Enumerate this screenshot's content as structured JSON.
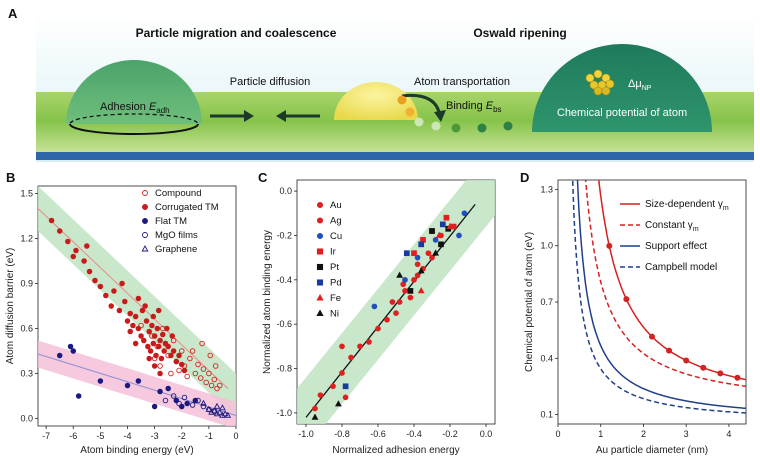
{
  "figure": {
    "panel_labels": {
      "a": "A",
      "b": "B",
      "c": "C",
      "d": "D"
    },
    "panel_a": {
      "heading_left": "Particle migration and coalescence",
      "heading_right": "Oswald ripening",
      "particle_diffusion": "Particle diffusion",
      "atom_transportation": "Atom transportation",
      "adhesion_label": "Adhesion ",
      "adhesion_symbol": "E",
      "adhesion_sub": "adh",
      "binding_label": "Binding ",
      "binding_symbol": "E",
      "binding_sub": "bs",
      "mu_symbol": "Δμ",
      "mu_sub": "NP",
      "chemical_potential": "Chemical potential of atom",
      "colors": {
        "sky": "#d8f0f4",
        "support": "#86c34a",
        "dome_green": "#4aa36a",
        "dome_teal": "#238564",
        "yellow_particle": "#f2e45a",
        "base": "#2f66a8"
      }
    }
  },
  "chart_data": [
    {
      "panel": "B",
      "type": "scatter",
      "xlabel": "Atom binding energy (eV)",
      "ylabel": "Atom diffusion barrier (eV)",
      "xlim": [
        -7.3,
        0
      ],
      "ylim": [
        -0.05,
        1.55
      ],
      "xticks": [
        "-7",
        "-6",
        "-5",
        "-4",
        "-3",
        "-2",
        "-1",
        "0"
      ],
      "yticks": [
        "0.0",
        "0.3",
        "0.6",
        "0.9",
        "1.2",
        "1.5"
      ],
      "xtick_values": [
        -7,
        -6,
        -5,
        -4,
        -3,
        -2,
        -1,
        0
      ],
      "ytick_values": [
        0,
        0.3,
        0.6,
        0.9,
        1.2,
        1.5
      ],
      "bands": [
        {
          "color": "#bfe4c2",
          "from": [
            -7.3,
            1.4
          ],
          "to": [
            0,
            0.15
          ],
          "halfwidth": 0.15
        },
        {
          "color": "#f5c0d8",
          "from": [
            -7.3,
            0.43
          ],
          "to": [
            0,
            0.02
          ],
          "halfwidth": 0.09
        }
      ],
      "fit_lines": [
        {
          "color": "#e88a8a",
          "from": [
            -7.3,
            1.4
          ],
          "to": [
            -0.3,
            0.2
          ]
        },
        {
          "color": "#8c8cd0",
          "from": [
            -7.3,
            0.43
          ],
          "to": [
            0,
            0.02
          ]
        }
      ],
      "legend_position": "top-right",
      "series": [
        {
          "name": "Compound",
          "marker": "open-circle",
          "color": "#d22222",
          "x": [
            -3.5,
            -3.1,
            -2.9,
            -2.7,
            -2.5,
            -2.3,
            -2.2,
            -2.0,
            -1.9,
            -1.7,
            -1.5,
            -1.4,
            -1.3,
            -1.2,
            -1.1,
            -1.0,
            -0.9,
            -0.8,
            -0.7,
            -0.6,
            -2.8,
            -2.6,
            -2.1,
            -1.8,
            -1.6,
            -2.4,
            -3.0,
            -1.25,
            -0.95,
            -0.75
          ],
          "y": [
            0.62,
            0.55,
            0.48,
            0.6,
            0.42,
            0.52,
            0.38,
            0.45,
            0.35,
            0.4,
            0.3,
            0.36,
            0.27,
            0.33,
            0.24,
            0.3,
            0.22,
            0.26,
            0.2,
            0.22,
            0.35,
            0.5,
            0.32,
            0.28,
            0.45,
            0.3,
            0.4,
            0.5,
            0.42,
            0.35
          ]
        },
        {
          "name": "Corrugated TM",
          "marker": "filled-circle",
          "color": "#c81a1a",
          "x": [
            -6.8,
            -6.5,
            -6.2,
            -5.9,
            -5.6,
            -5.4,
            -5.2,
            -5.0,
            -4.8,
            -4.6,
            -4.5,
            -4.3,
            -4.1,
            -4.0,
            -3.9,
            -3.8,
            -3.7,
            -3.6,
            -3.5,
            -3.45,
            -3.4,
            -3.3,
            -3.25,
            -3.2,
            -3.15,
            -3.1,
            -3.05,
            -3.0,
            -2.95,
            -2.9,
            -2.85,
            -2.8,
            -2.75,
            -2.7,
            -2.65,
            -2.6,
            -2.5,
            -2.4,
            -2.3,
            -2.2,
            -2.1,
            -2.0,
            -1.9,
            -3.6,
            -3.35,
            -3.05,
            -2.85,
            -2.55,
            -2.35,
            -4.2,
            -3.9,
            -3.7,
            -5.5,
            -6.0,
            -3.0,
            -2.8,
            -3.2
          ],
          "y": [
            1.32,
            1.25,
            1.18,
            1.12,
            1.05,
            0.98,
            0.92,
            0.88,
            0.82,
            0.75,
            0.85,
            0.72,
            0.78,
            0.65,
            0.7,
            0.62,
            0.68,
            0.6,
            0.55,
            0.72,
            0.52,
            0.65,
            0.48,
            0.58,
            0.45,
            0.62,
            0.5,
            0.55,
            0.42,
            0.6,
            0.48,
            0.52,
            0.4,
            0.56,
            0.45,
            0.5,
            0.48,
            0.42,
            0.45,
            0.38,
            0.42,
            0.36,
            0.32,
            0.8,
            0.75,
            0.68,
            0.72,
            0.6,
            0.55,
            0.9,
            0.58,
            0.5,
            1.15,
            1.08,
            0.35,
            0.3,
            0.4
          ]
        },
        {
          "name": "Flat TM",
          "marker": "filled-circle",
          "color": "#1a1a80",
          "x": [
            -6.5,
            -6.1,
            -6.0,
            -5.8,
            -5.0,
            -4.0,
            -3.6,
            -3.0,
            -2.8,
            -2.5,
            -2.2,
            -2.0,
            -1.8,
            -1.5
          ],
          "y": [
            0.42,
            0.48,
            0.45,
            0.15,
            0.25,
            0.22,
            0.25,
            0.08,
            0.18,
            0.2,
            0.12,
            0.08,
            0.1,
            0.12
          ]
        },
        {
          "name": "MgO films",
          "marker": "open-circle",
          "color": "#1a1a80",
          "x": [
            -2.6,
            -2.3,
            -2.1,
            -1.9,
            -1.6,
            -1.4,
            -1.2,
            -1.0,
            -0.8
          ],
          "y": [
            0.12,
            0.15,
            0.1,
            0.14,
            0.09,
            0.12,
            0.08,
            0.06,
            0.05
          ]
        },
        {
          "name": "Graphene",
          "marker": "open-triangle",
          "color": "#1a1a80",
          "x": [
            -1.2,
            -1.0,
            -0.9,
            -0.8,
            -0.7,
            -0.6,
            -0.5,
            -0.4,
            -0.3,
            -0.5,
            -0.7
          ],
          "y": [
            0.1,
            0.06,
            0.04,
            0.05,
            0.03,
            0.04,
            0.02,
            0.03,
            0.02,
            0.07,
            0.08
          ]
        }
      ],
      "legend": [
        "Compound",
        "Corrugated TM",
        "Flat TM",
        "MgO films",
        "Graphene"
      ]
    },
    {
      "panel": "C",
      "type": "scatter",
      "xlabel": "Normalized adhesion energy",
      "ylabel": "Normalized atom binding energy",
      "xlim": [
        -1.05,
        0.05
      ],
      "ylim": [
        -1.05,
        0.05
      ],
      "xticks": [
        "-1.0",
        "-0.8",
        "-0.6",
        "-0.4",
        "-0.2",
        "0.0"
      ],
      "yticks": [
        "0.0",
        "-0.2",
        "-0.4",
        "-0.6",
        "-0.8",
        "-1.0"
      ],
      "xtick_values": [
        -1.0,
        -0.8,
        -0.6,
        -0.4,
        -0.2,
        0.0
      ],
      "ytick_values": [
        0.0,
        -0.2,
        -0.4,
        -0.6,
        -0.8,
        -1.0
      ],
      "band": {
        "color": "#bfe4c2",
        "halfwidth": 0.16
      },
      "fit_line": {
        "color": "#111111",
        "from": [
          -1.0,
          -1.02
        ],
        "to": [
          -0.06,
          -0.06
        ]
      },
      "legend_position": "top-left",
      "series": [
        {
          "name": "Au",
          "marker": "filled-circle",
          "color": "#e02020",
          "x": [
            -0.95,
            -0.92,
            -0.85,
            -0.8,
            -0.75,
            -0.7,
            -0.65,
            -0.6,
            -0.55,
            -0.5,
            -0.48,
            -0.45,
            -0.42,
            -0.4,
            -0.38,
            -0.35,
            -0.3,
            -0.25,
            -0.8,
            -0.78
          ],
          "y": [
            -0.98,
            -0.92,
            -0.88,
            -0.82,
            -0.75,
            -0.7,
            -0.68,
            -0.62,
            -0.58,
            -0.55,
            -0.5,
            -0.45,
            -0.48,
            -0.4,
            -0.38,
            -0.35,
            -0.3,
            -0.2,
            -0.7,
            -0.93
          ]
        },
        {
          "name": "Ag",
          "marker": "filled-circle",
          "color": "#e02020",
          "x": [
            -0.52,
            -0.46,
            -0.38,
            -0.32
          ],
          "y": [
            -0.5,
            -0.42,
            -0.33,
            -0.28
          ]
        },
        {
          "name": "Cu",
          "marker": "filled-circle",
          "color": "#2050c0",
          "x": [
            -0.62,
            -0.45,
            -0.38,
            -0.28,
            -0.15,
            -0.12
          ],
          "y": [
            -0.52,
            -0.4,
            -0.3,
            -0.22,
            -0.2,
            -0.1
          ]
        },
        {
          "name": "Ir",
          "marker": "filled-square",
          "color": "#e02020",
          "x": [
            -0.4,
            -0.35,
            -0.3,
            -0.22,
            -0.18
          ],
          "y": [
            -0.28,
            -0.22,
            -0.18,
            -0.12,
            -0.16
          ]
        },
        {
          "name": "Pt",
          "marker": "filled-square",
          "color": "#111111",
          "x": [
            -0.42,
            -0.3,
            -0.25,
            -0.21
          ],
          "y": [
            -0.45,
            -0.18,
            -0.24,
            -0.17
          ]
        },
        {
          "name": "Pd",
          "marker": "filled-square",
          "color": "#1a3aa0",
          "x": [
            -0.44,
            -0.36,
            -0.24,
            -0.78
          ],
          "y": [
            -0.28,
            -0.24,
            -0.15,
            -0.88
          ]
        },
        {
          "name": "Fe",
          "marker": "filled-triangle",
          "color": "#e02020",
          "x": [
            -0.36,
            -0.26,
            -0.2
          ],
          "y": [
            -0.45,
            -0.2,
            -0.16
          ]
        },
        {
          "name": "Ni",
          "marker": "filled-triangle",
          "color": "#111111",
          "x": [
            -0.95,
            -0.82,
            -0.48,
            -0.36,
            -0.28
          ],
          "y": [
            -1.02,
            -0.96,
            -0.38,
            -0.36,
            -0.28
          ]
        }
      ],
      "legend": [
        "Au",
        "Ag",
        "Cu",
        "Ir",
        "Pt",
        "Pd",
        "Fe",
        "Ni"
      ]
    },
    {
      "panel": "D",
      "type": "line",
      "xlabel": "Au particle diameter (nm)",
      "ylabel": "Chemical potential of atom (eV)",
      "xlim": [
        0,
        4.4
      ],
      "ylim": [
        0.05,
        1.35
      ],
      "xticks": [
        "0",
        "1",
        "2",
        "3",
        "4"
      ],
      "yticks": [
        "0.1",
        "0.4",
        "0.7",
        "1.0",
        "1.3"
      ],
      "xtick_values": [
        0,
        1,
        2,
        3,
        4
      ],
      "ytick_values": [
        0.1,
        0.4,
        0.7,
        1.0,
        1.3
      ],
      "legend_position": "top-right",
      "series": [
        {
          "name": "Size-dependent γ",
          "sub": "m",
          "style": "solid",
          "color": "#d22222",
          "a": 0.8,
          "b": 0.09,
          "x0": 0.32,
          "markers": true,
          "marker_x": [
            0.8,
            1.2,
            1.6,
            2.2,
            2.6,
            3.0,
            3.4,
            3.8,
            4.2
          ]
        },
        {
          "name": "Constant γ",
          "sub": "m",
          "style": "dashed",
          "color": "#d22222",
          "a": 0.55,
          "b": 0.12,
          "x0": 0.2
        },
        {
          "name": "Support effect",
          "style": "solid",
          "color": "#1f3f8a",
          "a": 0.33,
          "b": 0.055,
          "x0": 0.2
        },
        {
          "name": "Campbell model",
          "style": "dashed",
          "color": "#1f3f8a",
          "a": 0.25,
          "b": 0.05,
          "x0": 0.15
        }
      ],
      "legend": [
        {
          "label": "Size-dependent γ",
          "sub": "m"
        },
        {
          "label": "Constant γ",
          "sub": "m"
        },
        {
          "label": "Support effect",
          "sub": ""
        },
        {
          "label": "Campbell model",
          "sub": ""
        }
      ]
    }
  ]
}
